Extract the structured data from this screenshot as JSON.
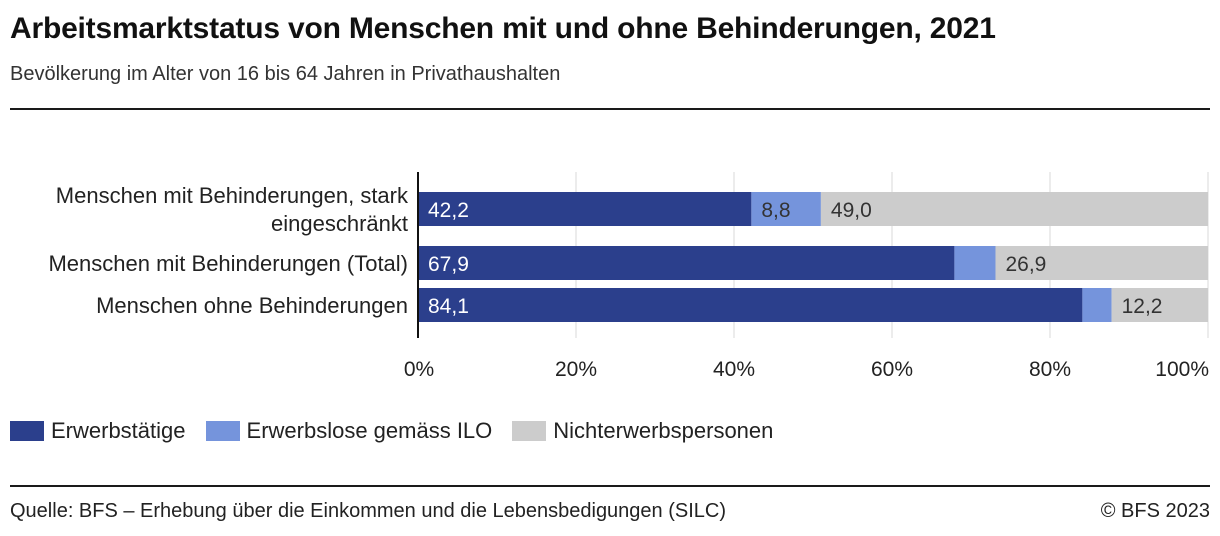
{
  "header": {
    "title": "Arbeitsmarktstatus von Menschen mit und ohne Behinderungen, 2021",
    "subtitle": "Bevölkerung im Alter von 16 bis 64 Jahren in Privathaushalten"
  },
  "footer": {
    "source": "Quelle: BFS – Erhebung über die Einkommen und die Lebensbedigungen (SILC)",
    "copyright": "© BFS 2023"
  },
  "chart_data": {
    "type": "bar",
    "orientation": "horizontal",
    "stacked": true,
    "categories": [
      [
        "Menschen mit Behinderungen, stark",
        "eingeschränkt"
      ],
      [
        "Menschen mit Behinderungen (Total)"
      ],
      [
        "Menschen ohne Behinderungen"
      ]
    ],
    "series": [
      {
        "name": "Erwerbstätige",
        "color": "#2b3f8c",
        "values": [
          42.2,
          67.9,
          84.1
        ],
        "labels": [
          "42,2",
          "67,9",
          "84,1"
        ]
      },
      {
        "name": "Erwerbslose gemäss ILO",
        "color": "#7594dc",
        "values": [
          8.8,
          5.2,
          3.7
        ],
        "labels": [
          "8,8",
          "",
          ""
        ]
      },
      {
        "name": "Nichterwerbspersonen",
        "color": "#cccccc",
        "values": [
          49.0,
          26.9,
          12.2
        ],
        "labels": [
          "49,0",
          "26,9",
          "12,2"
        ]
      }
    ],
    "xlim": [
      0,
      100
    ],
    "xticks": [
      0,
      20,
      40,
      60,
      80,
      100
    ],
    "xtick_labels": [
      "0%",
      "20%",
      "40%",
      "60%",
      "80%",
      "100%"
    ],
    "grid": true,
    "legend_position": "bottom-left"
  }
}
